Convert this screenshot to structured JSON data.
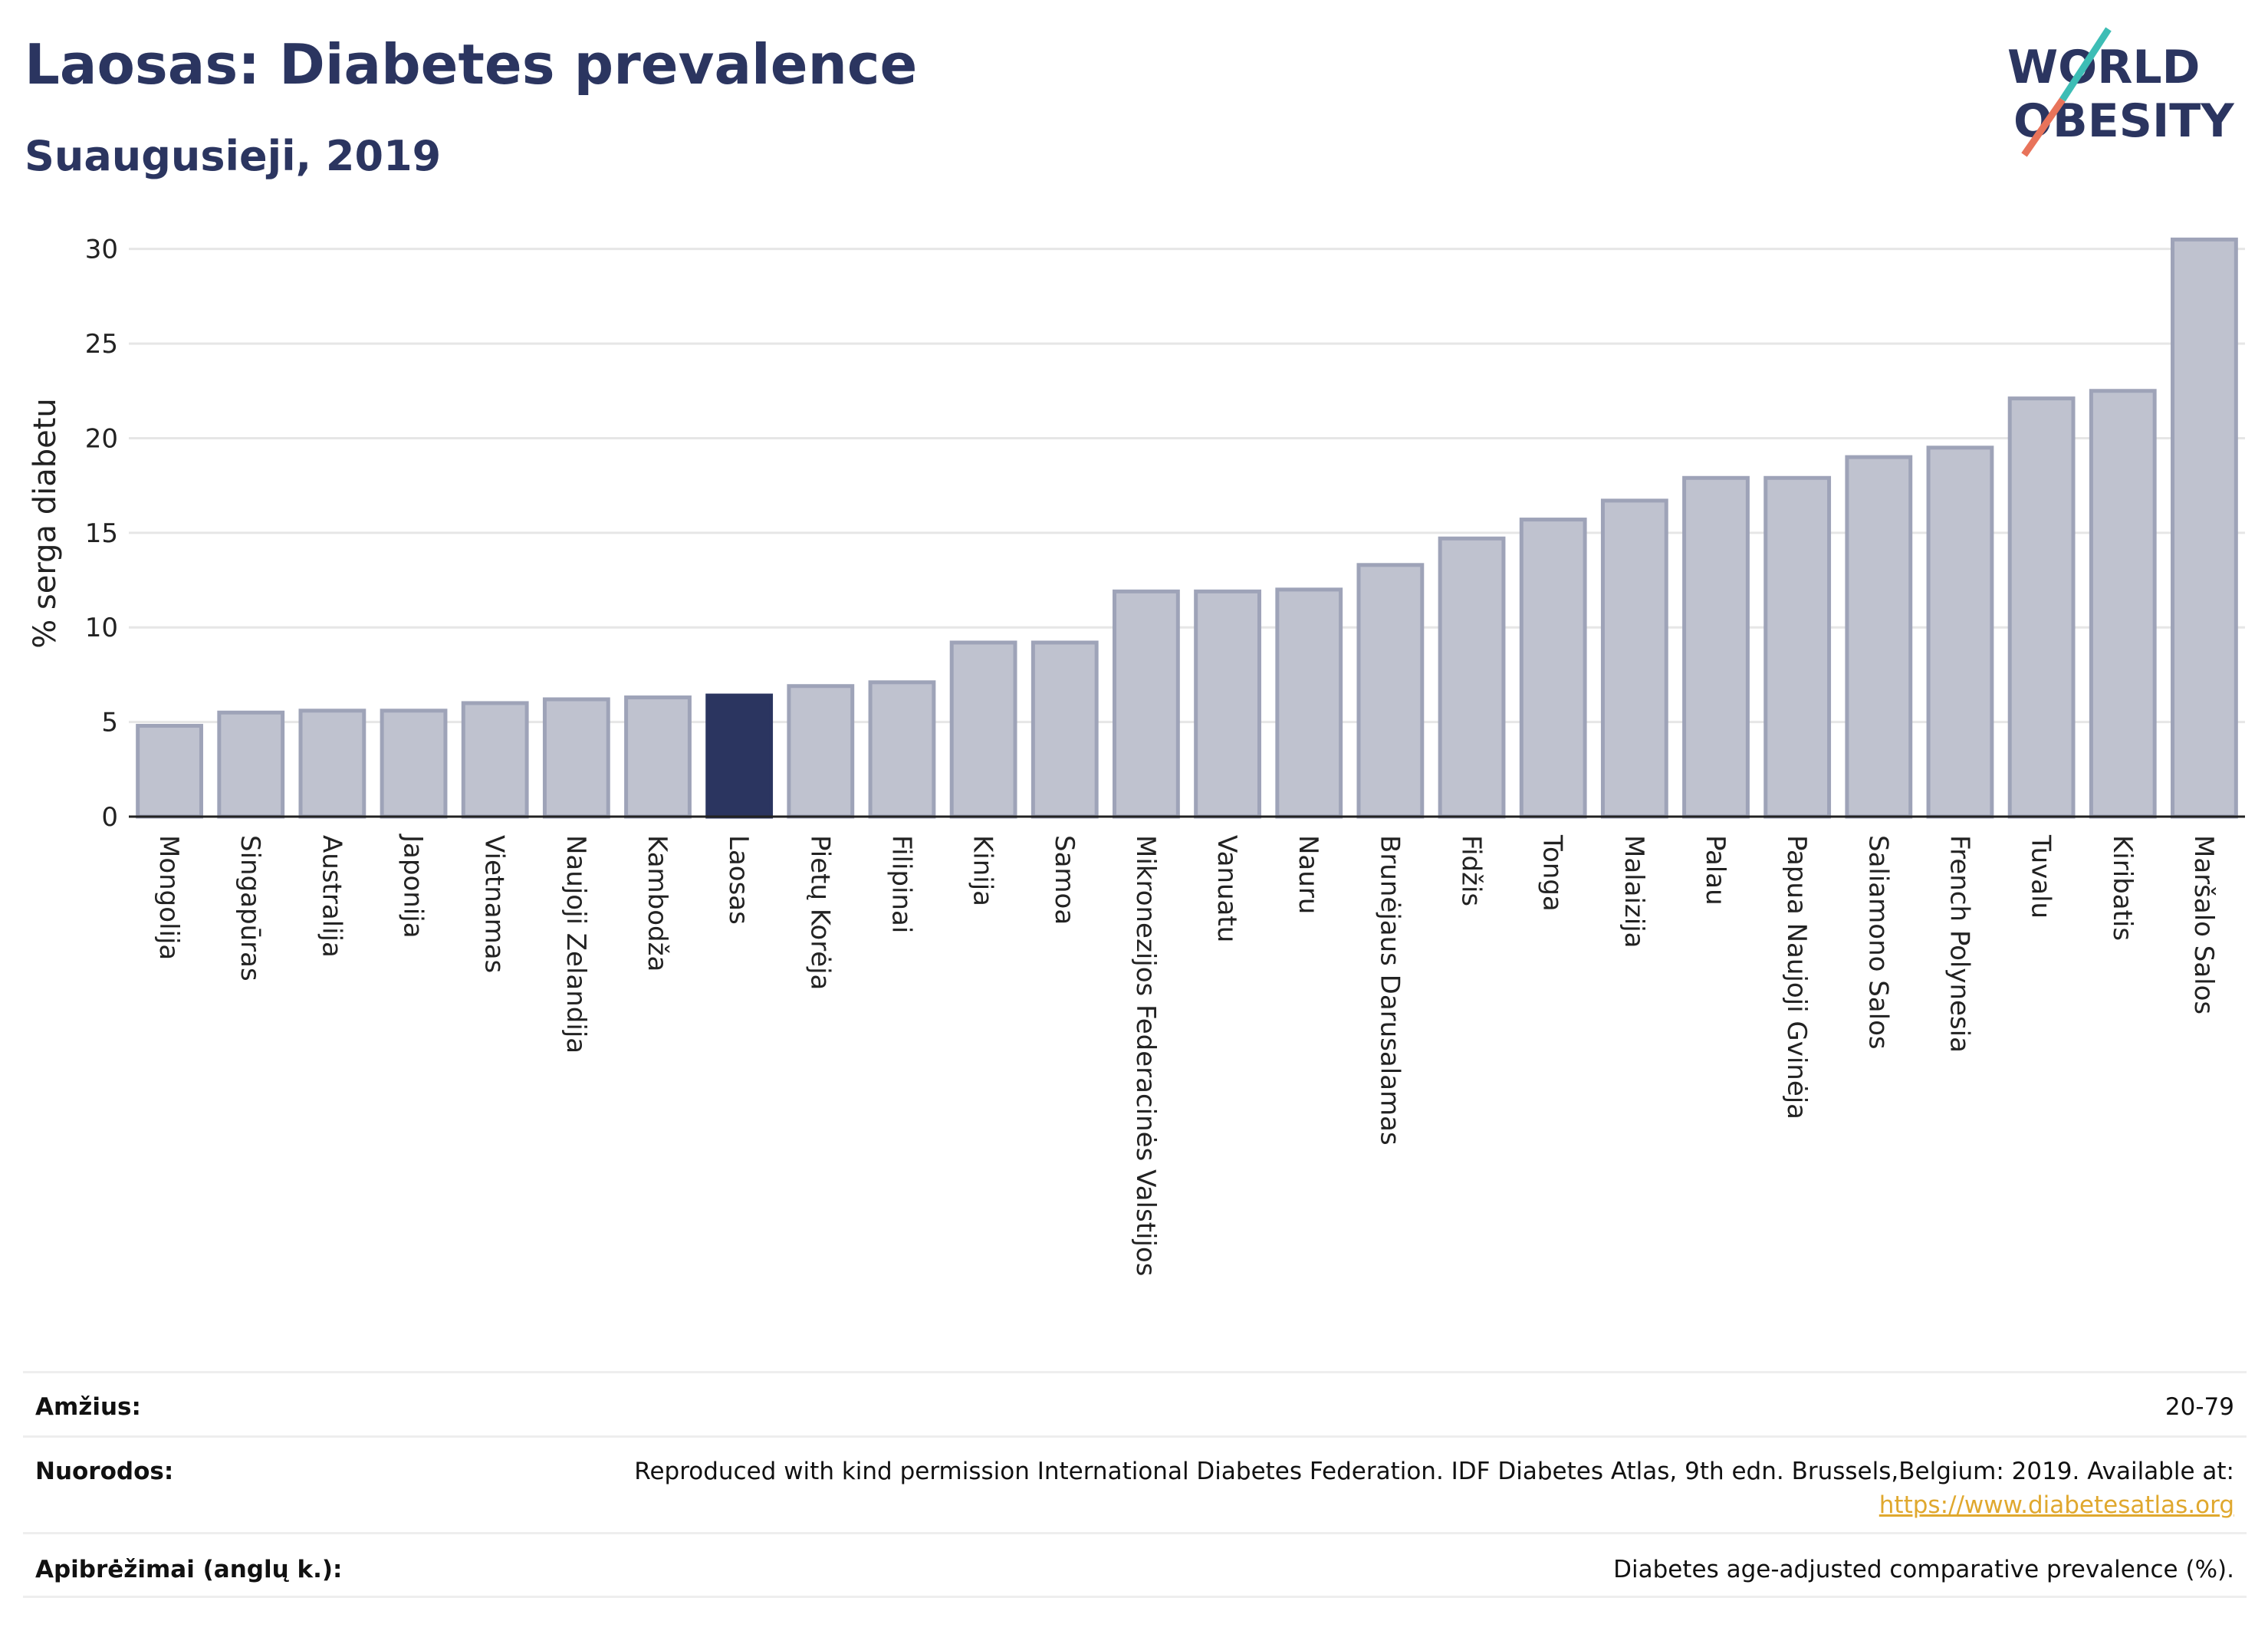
{
  "header": {
    "title": "Laosas: Diabetes prevalence",
    "subtitle": "Suaugusieji, 2019"
  },
  "logo": {
    "line1": "WORLD",
    "line2": "OBESITY",
    "colors": {
      "text": "#2b3560",
      "slash_top": "#3dbdb5",
      "slash_bottom": "#e8735a"
    }
  },
  "chart_data": {
    "type": "bar",
    "ylabel": "% serga diabetu",
    "ylim": [
      0,
      31
    ],
    "yticks": [
      0,
      5,
      10,
      15,
      20,
      25,
      30
    ],
    "grid": true,
    "highlight": "Laosas",
    "colors": {
      "bar": "#bfc2cf",
      "bar_border": "#9ea3b8",
      "highlight": "#2b3560"
    },
    "categories": [
      "Mongolija",
      "Singapūras",
      "Australija",
      "Japonija",
      "Vietnamas",
      "Naujoji Zelandija",
      "Kambodža",
      "Laosas",
      "Pietų Korėja",
      "Filipinai",
      "Kinija",
      "Samoa",
      "Mikronezijos Federacinės Valstijos",
      "Vanuatu",
      "Nauru",
      "Brunėjaus Darusalamas",
      "Fidžis",
      "Tonga",
      "Malaizija",
      "Palau",
      "Papua Naujoji Gvinėja",
      "Saliamono Salos",
      "French Polynesia",
      "Tuvalu",
      "Kiribatis",
      "Maršalo Salos"
    ],
    "values": [
      4.8,
      5.5,
      5.6,
      5.6,
      6.0,
      6.2,
      6.3,
      6.4,
      6.9,
      7.1,
      9.2,
      9.2,
      11.9,
      11.9,
      12.0,
      13.3,
      14.7,
      15.7,
      16.7,
      17.9,
      17.9,
      19.0,
      19.5,
      22.1,
      22.5,
      30.5
    ]
  },
  "meta": {
    "rows": [
      {
        "key": "Amžius:",
        "value": "20-79"
      },
      {
        "key": "Nuorodos:",
        "value": "Reproduced with kind permission International Diabetes Federation. IDF Diabetes Atlas, 9th edn. Brussels,Belgium: 2019. Available at:",
        "link": "https://www.diabetesatlas.org"
      },
      {
        "key": "Apibrėžimai (anglų k.):",
        "value": "Diabetes age-adjusted comparative prevalence (%)."
      }
    ]
  }
}
